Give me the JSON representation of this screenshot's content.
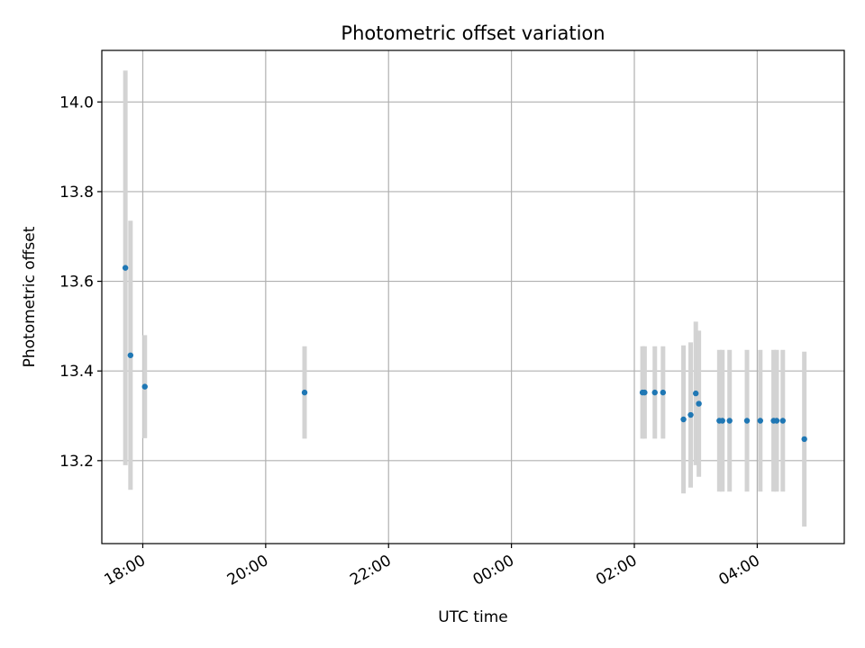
{
  "chart_data": {
    "type": "scatter",
    "title": "Photometric offset variation",
    "xlabel": "UTC time",
    "ylabel": "Photometric offset",
    "x_unit": "UTC time (HH:MM)",
    "xlim": [
      "17:20",
      "05:25"
    ],
    "ylim": [
      13.015,
      14.115
    ],
    "grid": true,
    "x_ticks": [
      "18:00",
      "20:00",
      "22:00",
      "00:00",
      "02:00",
      "04:00"
    ],
    "y_ticks": [
      13.2,
      13.4,
      13.6,
      13.8,
      14.0
    ],
    "y_tick_labels": [
      "13.2",
      "13.4",
      "13.6",
      "13.8",
      "14.0"
    ],
    "colors": {
      "points": "#1f77b4",
      "errorbars": "#d3d3d3",
      "grid": "#b0b0b0"
    },
    "points": [
      {
        "t": "17:43",
        "y": 13.63,
        "err": 0.44
      },
      {
        "t": "17:48",
        "y": 13.435,
        "err": 0.3
      },
      {
        "t": "18:02",
        "y": 13.365,
        "err": 0.115
      },
      {
        "t": "20:38",
        "y": 13.352,
        "err": 0.103
      },
      {
        "t": "02:08",
        "y": 13.352,
        "err": 0.103
      },
      {
        "t": "02:10",
        "y": 13.352,
        "err": 0.103
      },
      {
        "t": "02:20",
        "y": 13.352,
        "err": 0.103
      },
      {
        "t": "02:28",
        "y": 13.352,
        "err": 0.103
      },
      {
        "t": "02:48",
        "y": 13.292,
        "err": 0.165
      },
      {
        "t": "02:55",
        "y": 13.302,
        "err": 0.162
      },
      {
        "t": "03:00",
        "y": 13.35,
        "err": 0.16
      },
      {
        "t": "03:03",
        "y": 13.327,
        "err": 0.163
      },
      {
        "t": "03:23",
        "y": 13.289,
        "err": 0.158
      },
      {
        "t": "03:26",
        "y": 13.289,
        "err": 0.158
      },
      {
        "t": "03:33",
        "y": 13.289,
        "err": 0.158
      },
      {
        "t": "03:50",
        "y": 13.289,
        "err": 0.158
      },
      {
        "t": "04:03",
        "y": 13.289,
        "err": 0.158
      },
      {
        "t": "04:16",
        "y": 13.289,
        "err": 0.158
      },
      {
        "t": "04:19",
        "y": 13.289,
        "err": 0.158
      },
      {
        "t": "04:25",
        "y": 13.289,
        "err": 0.158
      },
      {
        "t": "04:46",
        "y": 13.248,
        "err": 0.195
      }
    ]
  }
}
